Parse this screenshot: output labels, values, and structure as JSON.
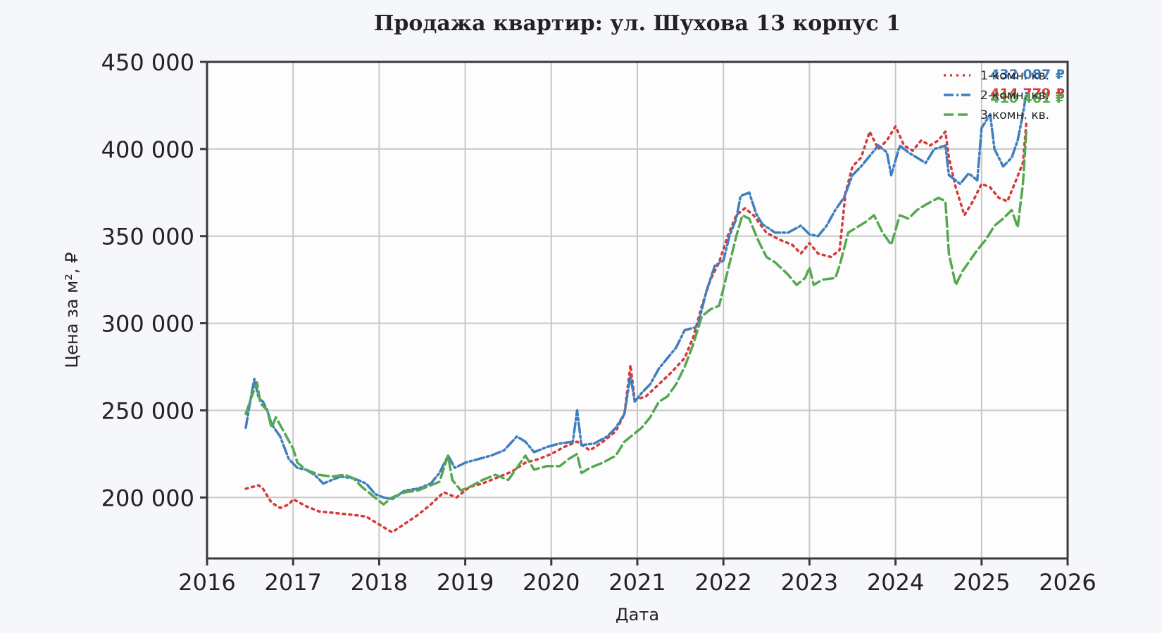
{
  "chart_data": {
    "type": "line",
    "title": "Продажа квартир: ул. Шухова 13 корпус 1",
    "xlabel": "Дата",
    "ylabel": "Цена за м², ₽",
    "xlim": [
      2016,
      2026
    ],
    "ylim": [
      165000,
      450000
    ],
    "x_ticks": [
      2016,
      2017,
      2018,
      2019,
      2020,
      2021,
      2022,
      2023,
      2024,
      2025,
      2026
    ],
    "x_tick_labels": [
      "2016",
      "2017",
      "2018",
      "2019",
      "2020",
      "2021",
      "2022",
      "2023",
      "2024",
      "2025",
      "2026"
    ],
    "y_ticks": [
      200000,
      250000,
      300000,
      350000,
      400000,
      450000
    ],
    "y_tick_labels": [
      "200 000",
      "250 000",
      "300 000",
      "350 000",
      "400 000",
      "450 000"
    ],
    "grid": true,
    "legend_position": "top-right",
    "series": [
      {
        "name": "1-комн. кв.",
        "color": "#d63a3a",
        "dash": "dotted",
        "end_label": "414 779 ₽",
        "points": [
          [
            2016.45,
            205000
          ],
          [
            2016.6,
            207000
          ],
          [
            2016.65,
            205000
          ],
          [
            2016.75,
            197000
          ],
          [
            2016.85,
            194000
          ],
          [
            2016.95,
            196000
          ],
          [
            2017.0,
            199000
          ],
          [
            2017.15,
            195000
          ],
          [
            2017.3,
            192000
          ],
          [
            2017.5,
            191000
          ],
          [
            2017.7,
            190000
          ],
          [
            2017.85,
            189000
          ],
          [
            2017.95,
            186000
          ],
          [
            2018.05,
            183000
          ],
          [
            2018.15,
            180000
          ],
          [
            2018.3,
            185000
          ],
          [
            2018.45,
            190000
          ],
          [
            2018.6,
            196000
          ],
          [
            2018.75,
            203000
          ],
          [
            2018.9,
            200000
          ],
          [
            2019.05,
            206000
          ],
          [
            2019.2,
            208000
          ],
          [
            2019.4,
            212000
          ],
          [
            2019.55,
            215000
          ],
          [
            2019.7,
            220000
          ],
          [
            2019.85,
            222000
          ],
          [
            2020.0,
            225000
          ],
          [
            2020.15,
            229000
          ],
          [
            2020.3,
            232000
          ],
          [
            2020.45,
            227000
          ],
          [
            2020.6,
            232000
          ],
          [
            2020.75,
            238000
          ],
          [
            2020.85,
            248000
          ],
          [
            2020.92,
            276000
          ],
          [
            2020.97,
            256000
          ],
          [
            2021.1,
            258000
          ],
          [
            2021.25,
            265000
          ],
          [
            2021.4,
            272000
          ],
          [
            2021.55,
            280000
          ],
          [
            2021.65,
            292000
          ],
          [
            2021.75,
            310000
          ],
          [
            2021.85,
            325000
          ],
          [
            2021.95,
            335000
          ],
          [
            2022.05,
            350000
          ],
          [
            2022.15,
            362000
          ],
          [
            2022.25,
            366000
          ],
          [
            2022.35,
            362000
          ],
          [
            2022.5,
            352000
          ],
          [
            2022.65,
            348000
          ],
          [
            2022.8,
            345000
          ],
          [
            2022.9,
            340000
          ],
          [
            2023.0,
            346000
          ],
          [
            2023.1,
            340000
          ],
          [
            2023.25,
            338000
          ],
          [
            2023.35,
            342000
          ],
          [
            2023.42,
            375000
          ],
          [
            2023.5,
            390000
          ],
          [
            2023.6,
            395000
          ],
          [
            2023.7,
            410000
          ],
          [
            2023.8,
            400000
          ],
          [
            2023.9,
            405000
          ],
          [
            2024.0,
            413000
          ],
          [
            2024.1,
            402000
          ],
          [
            2024.2,
            399000
          ],
          [
            2024.3,
            405000
          ],
          [
            2024.4,
            402000
          ],
          [
            2024.5,
            405000
          ],
          [
            2024.58,
            410000
          ],
          [
            2024.62,
            395000
          ],
          [
            2024.7,
            378000
          ],
          [
            2024.8,
            362000
          ],
          [
            2024.9,
            370000
          ],
          [
            2025.0,
            380000
          ],
          [
            2025.1,
            378000
          ],
          [
            2025.2,
            372000
          ],
          [
            2025.3,
            370000
          ],
          [
            2025.4,
            382000
          ],
          [
            2025.48,
            392000
          ],
          [
            2025.52,
            414779
          ]
        ]
      },
      {
        "name": "2-комн. кв.",
        "color": "#3f7fbf",
        "dash": "dashdot",
        "end_label": "432 087 ₽",
        "points": [
          [
            2016.45,
            240000
          ],
          [
            2016.5,
            255000
          ],
          [
            2016.55,
            268000
          ],
          [
            2016.6,
            257000
          ],
          [
            2016.65,
            255000
          ],
          [
            2016.7,
            250000
          ],
          [
            2016.75,
            242000
          ],
          [
            2016.85,
            235000
          ],
          [
            2016.95,
            222000
          ],
          [
            2017.05,
            217000
          ],
          [
            2017.15,
            216000
          ],
          [
            2017.25,
            213000
          ],
          [
            2017.35,
            208000
          ],
          [
            2017.45,
            210000
          ],
          [
            2017.55,
            212000
          ],
          [
            2017.7,
            211000
          ],
          [
            2017.85,
            208000
          ],
          [
            2017.95,
            202000
          ],
          [
            2018.05,
            200000
          ],
          [
            2018.15,
            199000
          ],
          [
            2018.3,
            204000
          ],
          [
            2018.45,
            205000
          ],
          [
            2018.6,
            208000
          ],
          [
            2018.7,
            214000
          ],
          [
            2018.8,
            224000
          ],
          [
            2018.88,
            217000
          ],
          [
            2019.0,
            220000
          ],
          [
            2019.15,
            222000
          ],
          [
            2019.3,
            224000
          ],
          [
            2019.45,
            227000
          ],
          [
            2019.6,
            235000
          ],
          [
            2019.7,
            232000
          ],
          [
            2019.8,
            226000
          ],
          [
            2019.95,
            229000
          ],
          [
            2020.1,
            231000
          ],
          [
            2020.25,
            232000
          ],
          [
            2020.3,
            250000
          ],
          [
            2020.35,
            230000
          ],
          [
            2020.5,
            231000
          ],
          [
            2020.65,
            235000
          ],
          [
            2020.75,
            240000
          ],
          [
            2020.85,
            248000
          ],
          [
            2020.92,
            270000
          ],
          [
            2020.97,
            255000
          ],
          [
            2021.05,
            260000
          ],
          [
            2021.15,
            265000
          ],
          [
            2021.25,
            274000
          ],
          [
            2021.35,
            280000
          ],
          [
            2021.45,
            286000
          ],
          [
            2021.55,
            296000
          ],
          [
            2021.7,
            298000
          ],
          [
            2021.8,
            318000
          ],
          [
            2021.9,
            333000
          ],
          [
            2022.0,
            336000
          ],
          [
            2022.07,
            350000
          ],
          [
            2022.15,
            360000
          ],
          [
            2022.2,
            373000
          ],
          [
            2022.3,
            375000
          ],
          [
            2022.38,
            363000
          ],
          [
            2022.45,
            357000
          ],
          [
            2022.6,
            352000
          ],
          [
            2022.75,
            352000
          ],
          [
            2022.9,
            356000
          ],
          [
            2023.0,
            351000
          ],
          [
            2023.1,
            350000
          ],
          [
            2023.2,
            356000
          ],
          [
            2023.3,
            365000
          ],
          [
            2023.4,
            372000
          ],
          [
            2023.5,
            385000
          ],
          [
            2023.6,
            390000
          ],
          [
            2023.7,
            396000
          ],
          [
            2023.8,
            402000
          ],
          [
            2023.9,
            398000
          ],
          [
            2023.95,
            385000
          ],
          [
            2024.05,
            402000
          ],
          [
            2024.15,
            398000
          ],
          [
            2024.25,
            395000
          ],
          [
            2024.35,
            392000
          ],
          [
            2024.45,
            400000
          ],
          [
            2024.58,
            402000
          ],
          [
            2024.62,
            385000
          ],
          [
            2024.75,
            380000
          ],
          [
            2024.85,
            386000
          ],
          [
            2024.95,
            382000
          ],
          [
            2025.0,
            412000
          ],
          [
            2025.1,
            420000
          ],
          [
            2025.15,
            400000
          ],
          [
            2025.25,
            390000
          ],
          [
            2025.35,
            395000
          ],
          [
            2025.42,
            405000
          ],
          [
            2025.48,
            420000
          ],
          [
            2025.52,
            432087
          ]
        ]
      },
      {
        "name": "3-комн. кв.",
        "color": "#55a84f",
        "dash": "dashed",
        "end_label": "410 461 ₽",
        "points": [
          [
            2016.45,
            248000
          ],
          [
            2016.52,
            258000
          ],
          [
            2016.58,
            266000
          ],
          [
            2016.62,
            254000
          ],
          [
            2016.7,
            250000
          ],
          [
            2016.75,
            240000
          ],
          [
            2016.8,
            246000
          ],
          [
            2016.9,
            237000
          ],
          [
            2017.0,
            228000
          ],
          [
            2017.05,
            220000
          ],
          [
            2017.15,
            216000
          ],
          [
            2017.3,
            213000
          ],
          [
            2017.45,
            212000
          ],
          [
            2017.6,
            213000
          ],
          [
            2017.7,
            211000
          ],
          [
            2017.8,
            206000
          ],
          [
            2017.95,
            200000
          ],
          [
            2018.05,
            196000
          ],
          [
            2018.15,
            200000
          ],
          [
            2018.3,
            203000
          ],
          [
            2018.45,
            204000
          ],
          [
            2018.6,
            207000
          ],
          [
            2018.7,
            209000
          ],
          [
            2018.8,
            224000
          ],
          [
            2018.85,
            210000
          ],
          [
            2018.95,
            204000
          ],
          [
            2019.05,
            206000
          ],
          [
            2019.2,
            210000
          ],
          [
            2019.35,
            213000
          ],
          [
            2019.5,
            210000
          ],
          [
            2019.6,
            217000
          ],
          [
            2019.7,
            224000
          ],
          [
            2019.8,
            216000
          ],
          [
            2019.95,
            218000
          ],
          [
            2020.1,
            218000
          ],
          [
            2020.2,
            222000
          ],
          [
            2020.3,
            225000
          ],
          [
            2020.35,
            214000
          ],
          [
            2020.45,
            217000
          ],
          [
            2020.6,
            220000
          ],
          [
            2020.75,
            224000
          ],
          [
            2020.85,
            232000
          ],
          [
            2020.95,
            236000
          ],
          [
            2021.05,
            240000
          ],
          [
            2021.15,
            246000
          ],
          [
            2021.25,
            255000
          ],
          [
            2021.35,
            258000
          ],
          [
            2021.45,
            265000
          ],
          [
            2021.55,
            275000
          ],
          [
            2021.65,
            288000
          ],
          [
            2021.75,
            304000
          ],
          [
            2021.85,
            308000
          ],
          [
            2021.95,
            310000
          ],
          [
            2022.05,
            330000
          ],
          [
            2022.15,
            350000
          ],
          [
            2022.22,
            362000
          ],
          [
            2022.3,
            360000
          ],
          [
            2022.4,
            348000
          ],
          [
            2022.5,
            338000
          ],
          [
            2022.6,
            335000
          ],
          [
            2022.75,
            328000
          ],
          [
            2022.85,
            322000
          ],
          [
            2022.95,
            326000
          ],
          [
            2023.0,
            332000
          ],
          [
            2023.05,
            322000
          ],
          [
            2023.15,
            325000
          ],
          [
            2023.3,
            326000
          ],
          [
            2023.35,
            333000
          ],
          [
            2023.45,
            352000
          ],
          [
            2023.55,
            355000
          ],
          [
            2023.65,
            358000
          ],
          [
            2023.75,
            362000
          ],
          [
            2023.85,
            352000
          ],
          [
            2023.95,
            345000
          ],
          [
            2024.05,
            362000
          ],
          [
            2024.15,
            360000
          ],
          [
            2024.25,
            365000
          ],
          [
            2024.35,
            368000
          ],
          [
            2024.5,
            372000
          ],
          [
            2024.58,
            370000
          ],
          [
            2024.62,
            340000
          ],
          [
            2024.7,
            322000
          ],
          [
            2024.78,
            330000
          ],
          [
            2024.85,
            335000
          ],
          [
            2024.95,
            342000
          ],
          [
            2025.05,
            348000
          ],
          [
            2025.15,
            356000
          ],
          [
            2025.25,
            360000
          ],
          [
            2025.35,
            365000
          ],
          [
            2025.42,
            355000
          ],
          [
            2025.48,
            380000
          ],
          [
            2025.52,
            410461
          ]
        ]
      }
    ]
  }
}
